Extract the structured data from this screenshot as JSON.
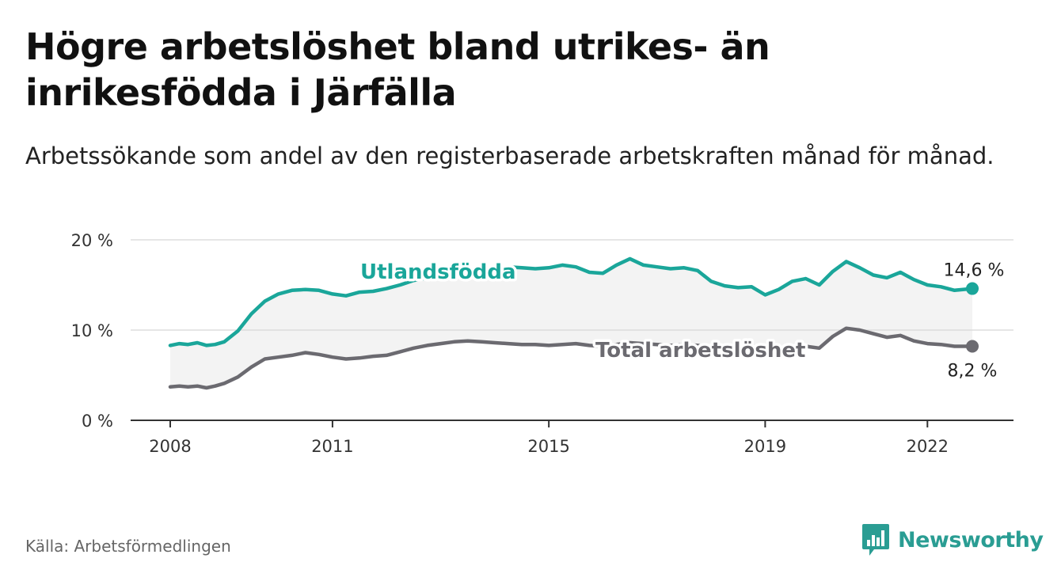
{
  "title": "Högre arbetslöshet bland utrikes- än inrikesfödda i Järfälla",
  "subtitle": "Arbetssökande som andel av den registerbaserade arbetskraften månad för månad.",
  "source": "Källa: Arbetsförmedlingen",
  "brand": {
    "name": "Newsworthy",
    "icon": "newsworthy-logo-icon"
  },
  "colors": {
    "foreign": "#1aa69a",
    "total": "#6b6a70",
    "band": "#f3f3f3",
    "grid": "#dddddd",
    "axis": "#333333"
  },
  "chart_data": {
    "type": "line",
    "title": "Högre arbetslöshet bland utrikes- än inrikesfödda i Järfälla",
    "xlabel": "",
    "ylabel": "",
    "xlim": [
      2008.0,
      2022.83
    ],
    "ylim": [
      0,
      20
    ],
    "x_ticks": [
      {
        "value": 2008,
        "label": "2008"
      },
      {
        "value": 2011,
        "label": "2011"
      },
      {
        "value": 2015,
        "label": "2015"
      },
      {
        "value": 2019,
        "label": "2019"
      },
      {
        "value": 2022,
        "label": "2022"
      }
    ],
    "y_ticks": [
      {
        "value": 0,
        "label": "0 %"
      },
      {
        "value": 10,
        "label": "10 %"
      },
      {
        "value": 20,
        "label": "20 %"
      }
    ],
    "series": [
      {
        "name": "Utlandsfödda",
        "color": "#1aa69a",
        "end_label": "14,6 %",
        "x": [
          2008.0,
          2008.17,
          2008.33,
          2008.5,
          2008.67,
          2008.83,
          2009.0,
          2009.25,
          2009.5,
          2009.75,
          2010.0,
          2010.25,
          2010.5,
          2010.75,
          2011.0,
          2011.25,
          2011.5,
          2011.75,
          2012.0,
          2012.25,
          2012.5,
          2012.75,
          2013.0,
          2013.25,
          2013.5,
          2013.75,
          2014.0,
          2014.25,
          2014.5,
          2014.75,
          2015.0,
          2015.25,
          2015.5,
          2015.75,
          2016.0,
          2016.25,
          2016.5,
          2016.75,
          2017.0,
          2017.25,
          2017.5,
          2017.75,
          2018.0,
          2018.25,
          2018.5,
          2018.75,
          2019.0,
          2019.25,
          2019.5,
          2019.75,
          2020.0,
          2020.25,
          2020.5,
          2020.75,
          2021.0,
          2021.25,
          2021.5,
          2021.75,
          2022.0,
          2022.25,
          2022.5,
          2022.83
        ],
        "values": [
          8.3,
          8.5,
          8.4,
          8.6,
          8.3,
          8.4,
          8.7,
          9.9,
          11.8,
          13.2,
          14.0,
          14.4,
          14.5,
          14.4,
          14.0,
          13.8,
          14.2,
          14.3,
          14.6,
          15.0,
          15.5,
          15.8,
          16.0,
          16.3,
          16.5,
          16.6,
          16.8,
          17.0,
          16.9,
          16.8,
          16.9,
          17.2,
          17.0,
          16.4,
          16.3,
          17.2,
          17.9,
          17.2,
          17.0,
          16.8,
          16.9,
          16.6,
          15.4,
          14.9,
          14.7,
          14.8,
          13.9,
          14.5,
          15.4,
          15.7,
          15.0,
          16.5,
          17.6,
          16.9,
          16.1,
          15.8,
          16.4,
          15.6,
          15.0,
          14.8,
          14.4,
          14.6
        ]
      },
      {
        "name": "Total arbetslöshet",
        "color": "#6b6a70",
        "end_label": "8,2 %",
        "x": [
          2008.0,
          2008.17,
          2008.33,
          2008.5,
          2008.67,
          2008.83,
          2009.0,
          2009.25,
          2009.5,
          2009.75,
          2010.0,
          2010.25,
          2010.5,
          2010.75,
          2011.0,
          2011.25,
          2011.5,
          2011.75,
          2012.0,
          2012.25,
          2012.5,
          2012.75,
          2013.0,
          2013.25,
          2013.5,
          2013.75,
          2014.0,
          2014.25,
          2014.5,
          2014.75,
          2015.0,
          2015.25,
          2015.5,
          2015.75,
          2016.0,
          2016.25,
          2016.5,
          2016.75,
          2017.0,
          2017.25,
          2017.5,
          2017.75,
          2018.0,
          2018.25,
          2018.5,
          2018.75,
          2019.0,
          2019.25,
          2019.5,
          2019.75,
          2020.0,
          2020.25,
          2020.5,
          2020.75,
          2021.0,
          2021.25,
          2021.5,
          2021.75,
          2022.0,
          2022.25,
          2022.5,
          2022.83
        ],
        "values": [
          3.7,
          3.8,
          3.7,
          3.8,
          3.6,
          3.8,
          4.1,
          4.8,
          5.9,
          6.8,
          7.0,
          7.2,
          7.5,
          7.3,
          7.0,
          6.8,
          6.9,
          7.1,
          7.2,
          7.6,
          8.0,
          8.3,
          8.5,
          8.7,
          8.8,
          8.7,
          8.6,
          8.5,
          8.4,
          8.4,
          8.3,
          8.4,
          8.5,
          8.3,
          8.2,
          8.4,
          8.6,
          8.5,
          8.4,
          8.3,
          8.4,
          8.3,
          8.1,
          8.0,
          8.0,
          8.1,
          7.8,
          8.0,
          8.1,
          8.2,
          8.0,
          9.3,
          10.2,
          10.0,
          9.6,
          9.2,
          9.4,
          8.8,
          8.5,
          8.4,
          8.2,
          8.2
        ]
      }
    ]
  }
}
